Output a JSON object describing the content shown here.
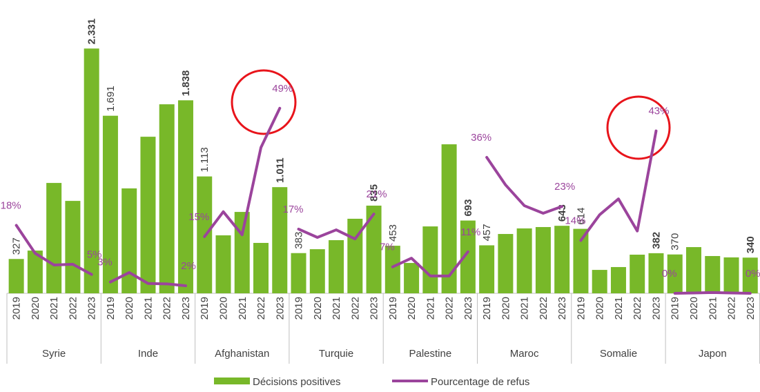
{
  "chart_data": {
    "type": "bar-line",
    "groups": [
      "Syrie",
      "Inde",
      "Afghanistan",
      "Turquie",
      "Palestine",
      "Maroc",
      "Somalie",
      "Japon"
    ],
    "categories": [
      "2019",
      "2020",
      "2021",
      "2022",
      "2023"
    ],
    "ylim": [
      0,
      2780
    ],
    "y2lim": [
      0,
      77.3
    ],
    "series": [
      {
        "name": "Décisions positives",
        "type": "bar",
        "color": "#78b829",
        "values": [
          [
            327,
            407,
            1051,
            880,
            2331
          ],
          [
            1691,
            999,
            1491,
            1800,
            1838
          ],
          [
            1113,
            552,
            775,
            480,
            1011
          ],
          [
            383,
            420,
            506,
            710,
            835
          ],
          [
            453,
            289,
            637,
            1419,
            693
          ],
          [
            457,
            565,
            618,
            631,
            643
          ],
          [
            614,
            223,
            250,
            368,
            382
          ],
          [
            370,
            440,
            355,
            342,
            340
          ]
        ],
        "value_labels": [
          [
            "327",
            null,
            null,
            null,
            "2.331"
          ],
          [
            "1.691",
            null,
            null,
            null,
            "1.838"
          ],
          [
            "1.113",
            null,
            null,
            null,
            "1.011"
          ],
          [
            "383",
            null,
            null,
            null,
            "835"
          ],
          [
            "453",
            null,
            null,
            null,
            "693"
          ],
          [
            "457",
            null,
            null,
            null,
            "643"
          ],
          [
            "614",
            null,
            null,
            null,
            "382"
          ],
          [
            "370",
            null,
            null,
            null,
            "340"
          ]
        ]
      },
      {
        "name": "Pourcentage de refus",
        "type": "line",
        "axis": "y2",
        "color": "#9b449c",
        "values": [
          [
            18,
            10.6,
            7.5,
            7.7,
            5
          ],
          [
            3,
            5.5,
            2.6,
            2.5,
            2
          ],
          [
            15,
            21.6,
            15.5,
            38.6,
            49
          ],
          [
            17,
            14.8,
            16.8,
            14.4,
            21
          ],
          [
            7,
            9.3,
            4.6,
            4.6,
            11
          ],
          [
            36,
            28.7,
            23.2,
            21.2,
            23
          ],
          [
            14,
            20.8,
            25,
            16.5,
            43
          ],
          [
            0,
            0.1,
            0.2,
            0.1,
            0
          ]
        ],
        "value_labels": [
          [
            "18%",
            null,
            null,
            null,
            "5%"
          ],
          [
            "3%",
            null,
            null,
            null,
            "2%"
          ],
          [
            "15%",
            null,
            null,
            null,
            "49%"
          ],
          [
            "17%",
            null,
            null,
            null,
            "21%"
          ],
          [
            "7%",
            null,
            null,
            null,
            "11%"
          ],
          [
            "36%",
            null,
            null,
            null,
            "23%"
          ],
          [
            "14%",
            null,
            null,
            null,
            "43%"
          ],
          [
            "0%",
            null,
            null,
            null,
            "0%"
          ]
        ]
      }
    ]
  }
}
